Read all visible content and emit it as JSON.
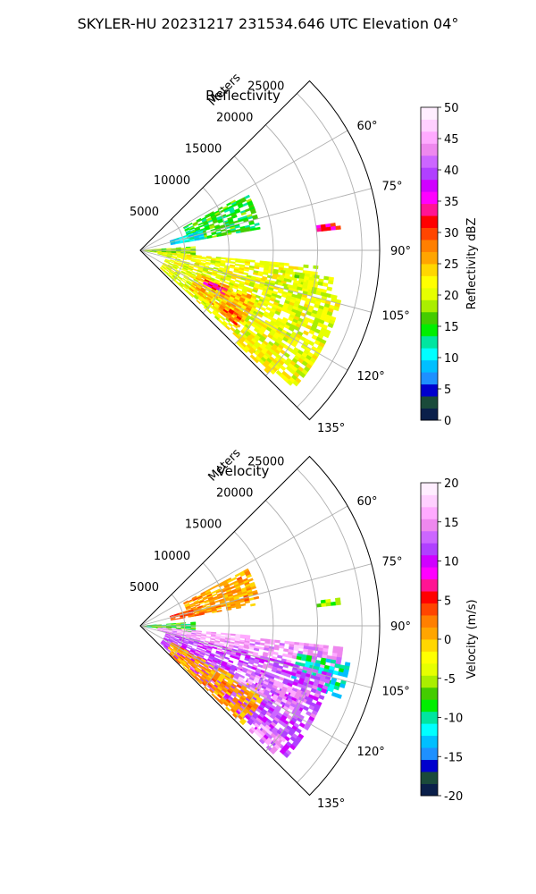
{
  "figure": {
    "title": "SKYLER-HU  20231217  231534.646 UTC Elevation 04°"
  },
  "colors": {
    "grid": "#b0b0b0",
    "frame": "#000000"
  },
  "chart_data": [
    {
      "type": "polar-sector",
      "title": "Reflectivity",
      "radial_axis_label": "Meters",
      "radial_ticks": [
        "5000",
        "10000",
        "15000",
        "20000",
        "25000"
      ],
      "radial_tick_values": [
        5000,
        10000,
        15000,
        20000,
        25000
      ],
      "r_max": 27000,
      "theta_ticks": [
        "60°",
        "75°",
        "90°",
        "105°",
        "120°",
        "135°"
      ],
      "theta_tick_values": [
        60,
        75,
        90,
        105,
        120,
        135
      ],
      "theta_range": [
        45,
        135
      ],
      "grid": true,
      "colorbar": {
        "label": "Reflectivity dBZ",
        "range": [
          0,
          50
        ],
        "ticks": [
          "0",
          "5",
          "10",
          "15",
          "20",
          "25",
          "30",
          "35",
          "40",
          "45",
          "50"
        ],
        "tick_values": [
          0,
          5,
          10,
          15,
          20,
          25,
          30,
          35,
          40,
          45,
          50
        ],
        "colors": [
          "#0a1f4a",
          "#1a4a3a",
          "#0000cd",
          "#1e90ff",
          "#00bfff",
          "#00ffff",
          "#00e5a0",
          "#00ee00",
          "#44cc00",
          "#aaee00",
          "#e6ff00",
          "#ffff00",
          "#ffd700",
          "#ffa500",
          "#ff7f00",
          "#ff4500",
          "#ff0000",
          "#ff1493",
          "#ff00ff",
          "#d000ff",
          "#b040ff",
          "#cc66ff",
          "#ee88ee",
          "#ffaaff",
          "#ffd0ff",
          "#ffeeff"
        ]
      },
      "echo_regions": [
        {
          "az": [
            62,
            80
          ],
          "r": [
            5500,
            13500
          ],
          "level": 15
        },
        {
          "az": [
            72,
            80
          ],
          "r": [
            3500,
            7000
          ],
          "level": 10
        },
        {
          "az": [
            86,
            98
          ],
          "r": [
            200,
            6000
          ],
          "level": 18
        },
        {
          "az": [
            95,
            103
          ],
          "r": [
            2000,
            20000
          ],
          "level": 21
        },
        {
          "az": [
            103,
            132
          ],
          "r": [
            3000,
            23000
          ],
          "level": 21
        },
        {
          "az": [
            112,
            128
          ],
          "r": [
            7000,
            14000
          ],
          "level": 25
        },
        {
          "az": [
            114,
            118
          ],
          "r": [
            8000,
            10500
          ],
          "level": 34
        },
        {
          "az": [
            123,
            128
          ],
          "r": [
            11000,
            13500
          ],
          "level": 29
        },
        {
          "az": [
            128,
            134
          ],
          "r": [
            15000,
            20000
          ],
          "level": 22
        },
        {
          "az": [
            98,
            104
          ],
          "r": [
            16000,
            22000
          ],
          "level": 20
        },
        {
          "az": [
            82,
            84
          ],
          "r": [
            20000,
            22500
          ],
          "level": 33
        }
      ]
    },
    {
      "type": "polar-sector",
      "title": "Velocity",
      "radial_axis_label": "Meters",
      "radial_ticks": [
        "5000",
        "10000",
        "15000",
        "20000",
        "25000"
      ],
      "radial_tick_values": [
        5000,
        10000,
        15000,
        20000,
        25000
      ],
      "r_max": 27000,
      "theta_ticks": [
        "60°",
        "75°",
        "90°",
        "105°",
        "120°",
        "135°"
      ],
      "theta_tick_values": [
        60,
        75,
        90,
        105,
        120,
        135
      ],
      "theta_range": [
        45,
        135
      ],
      "grid": true,
      "colorbar": {
        "label": "Velocity (m/s)",
        "range": [
          -20,
          20
        ],
        "ticks": [
          "-20",
          "-15",
          "-10",
          "-5",
          "0",
          "5",
          "10",
          "15",
          "20"
        ],
        "tick_values": [
          -20,
          -15,
          -10,
          -5,
          0,
          5,
          10,
          15,
          20
        ],
        "colors": [
          "#0a1f4a",
          "#1a4a3a",
          "#0000cd",
          "#1e90ff",
          "#00bfff",
          "#00ffff",
          "#00e5a0",
          "#00ee00",
          "#44cc00",
          "#aaee00",
          "#e6ff00",
          "#ffff00",
          "#ffd700",
          "#ffa500",
          "#ff7f00",
          "#ff4500",
          "#ff0000",
          "#ff1493",
          "#ff00ff",
          "#d000ff",
          "#b040ff",
          "#cc66ff",
          "#ee88ee",
          "#ffaaff",
          "#ffd0ff",
          "#ffeeff"
        ]
      },
      "echo_regions": [
        {
          "az": [
            62,
            80
          ],
          "r": [
            5500,
            13500
          ],
          "level": 1
        },
        {
          "az": [
            72,
            80
          ],
          "r": [
            3500,
            7000
          ],
          "level": 3
        },
        {
          "az": [
            86,
            98
          ],
          "r": [
            200,
            6000
          ],
          "level": -8
        },
        {
          "az": [
            95,
            104
          ],
          "r": [
            2000,
            12000
          ],
          "level": 16
        },
        {
          "az": [
            96,
            105
          ],
          "r": [
            12000,
            23000
          ],
          "level": 15
        },
        {
          "az": [
            100,
            110
          ],
          "r": [
            18000,
            24000
          ],
          "level": -11
        },
        {
          "az": [
            104,
            132
          ],
          "r": [
            3000,
            22000
          ],
          "level": 12
        },
        {
          "az": [
            118,
            134
          ],
          "r": [
            4000,
            16000
          ],
          "level": 1
        },
        {
          "az": [
            112,
            120
          ],
          "r": [
            12000,
            20000
          ],
          "level": 15
        },
        {
          "az": [
            128,
            134
          ],
          "r": [
            17000,
            20500
          ],
          "level": 15
        },
        {
          "az": [
            82,
            84
          ],
          "r": [
            20000,
            22500
          ],
          "level": -6
        }
      ]
    }
  ]
}
